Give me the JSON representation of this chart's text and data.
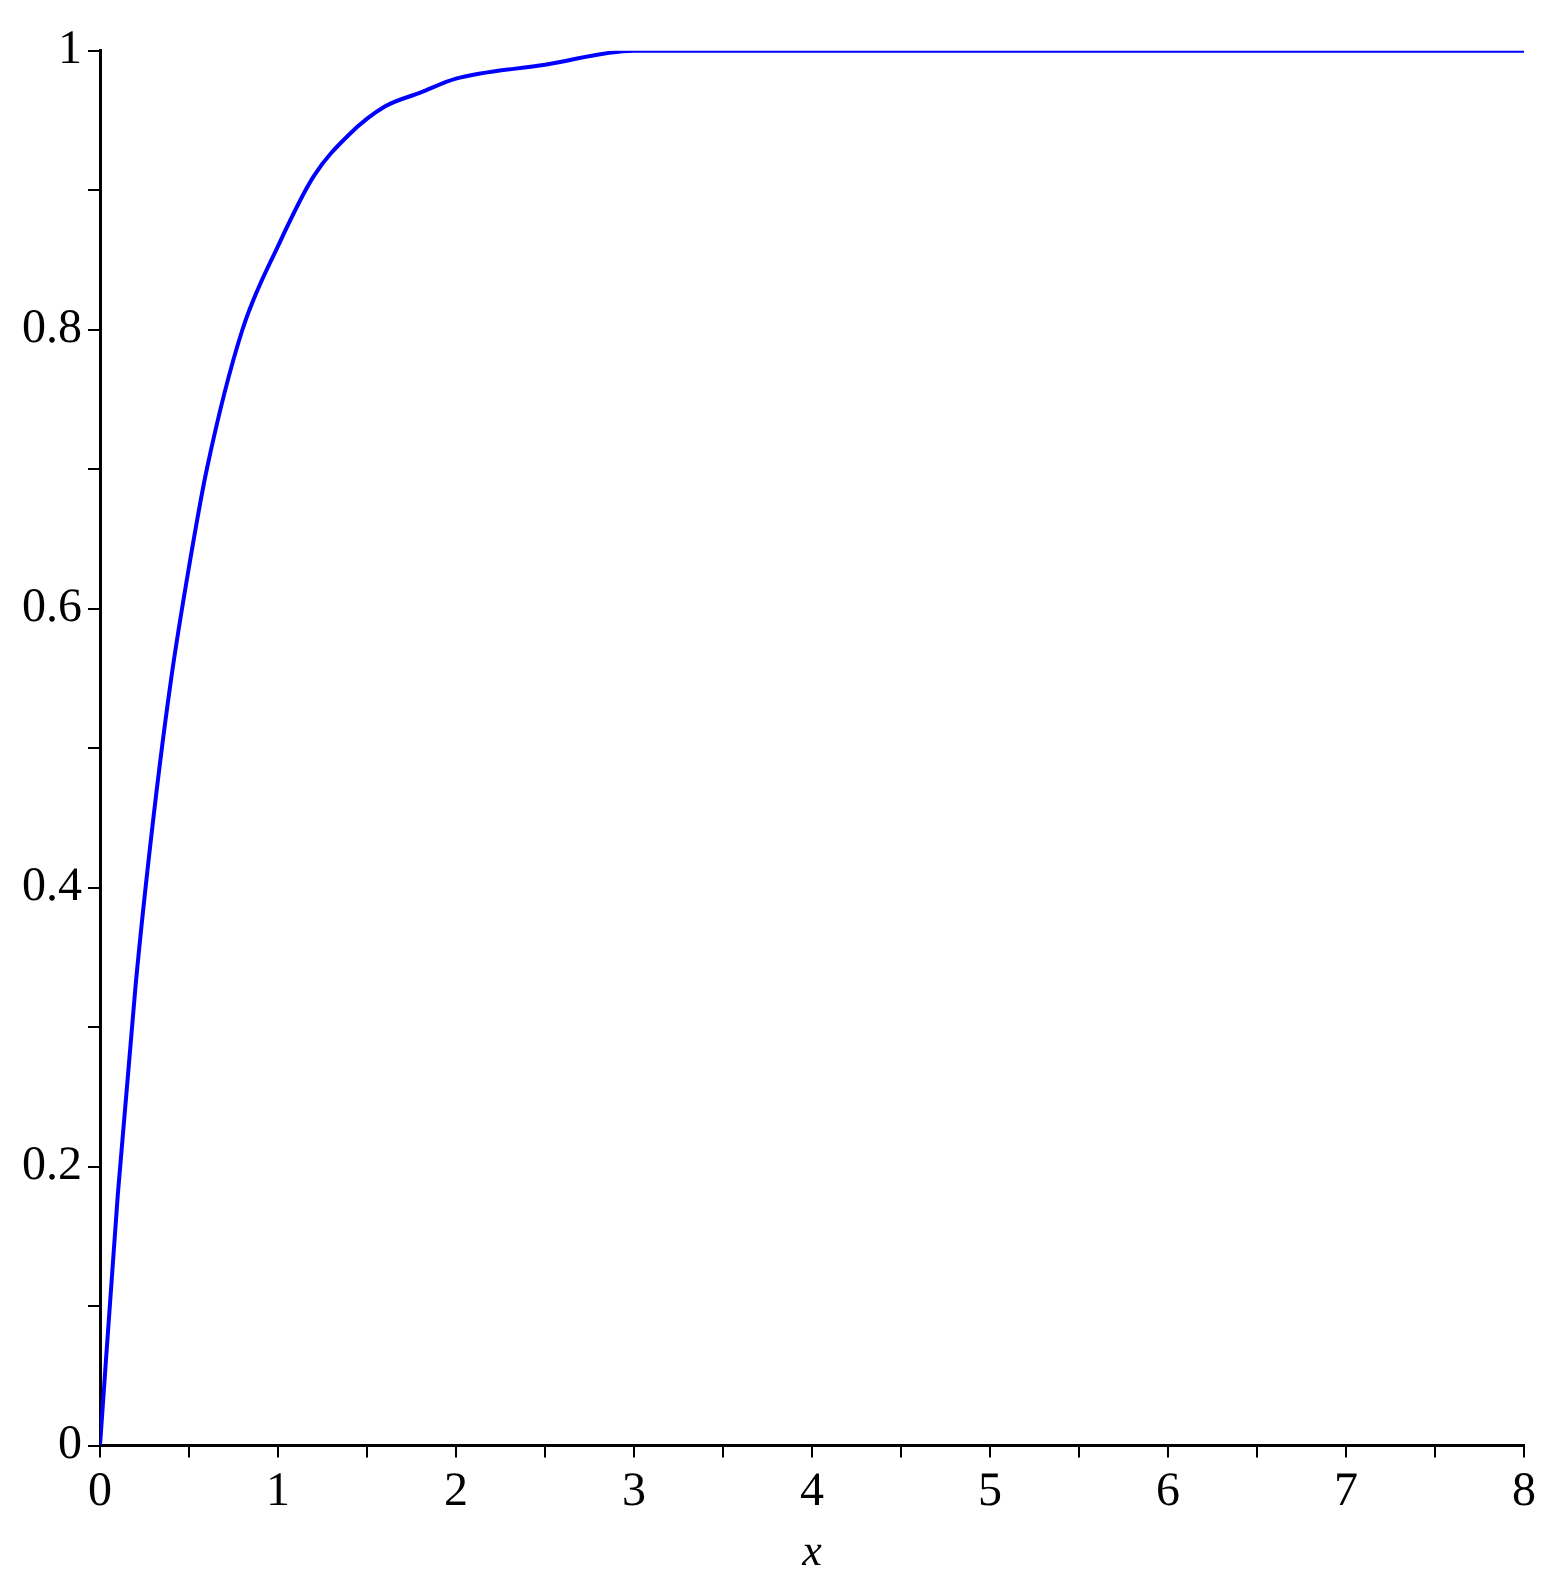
{
  "chart_data": {
    "type": "line",
    "xlabel": "x",
    "x": [
      0,
      0.1,
      0.2,
      0.3,
      0.4,
      0.5,
      0.6,
      0.8,
      1,
      1.2,
      1.4,
      1.6,
      1.8,
      2,
      2.5,
      3,
      3.5,
      4,
      5,
      6,
      7,
      8
    ],
    "series": [
      {
        "color": "#0000ff",
        "values": [
          0,
          0.18,
          0.33,
          0.45,
          0.55,
          0.63,
          0.7,
          0.8,
          0.86,
          0.91,
          0.94,
          0.96,
          0.97,
          0.98,
          0.99,
          1,
          1,
          1,
          1,
          1,
          1,
          1
        ]
      }
    ],
    "xlim": [
      0,
      8
    ],
    "xticks": [
      0,
      {
        "value": 0.5,
        "label": null
      },
      1,
      {
        "value": 1.5,
        "label": null
      },
      2,
      {
        "value": 2.5,
        "label": null
      },
      3,
      {
        "value": 3.5,
        "label": null
      },
      4,
      {
        "value": 4.5,
        "label": null
      },
      5,
      {
        "value": 5.5,
        "label": null
      },
      6,
      {
        "value": 6.5,
        "label": null
      },
      7,
      {
        "value": 7.5,
        "label": null
      },
      8
    ],
    "ylim": [
      0,
      1
    ],
    "yticks": [
      0,
      {
        "value": 0.1,
        "label": null
      },
      0.2,
      {
        "value": 0.3,
        "label": null
      },
      0.4,
      {
        "value": 0.5,
        "label": null
      },
      0.6,
      {
        "value": 0.7,
        "label": null
      },
      0.8,
      {
        "value": 0.9,
        "label": null
      },
      1
    ],
    "grid": false,
    "legend": false,
    "marker": "none",
    "line_style": "solid"
  }
}
